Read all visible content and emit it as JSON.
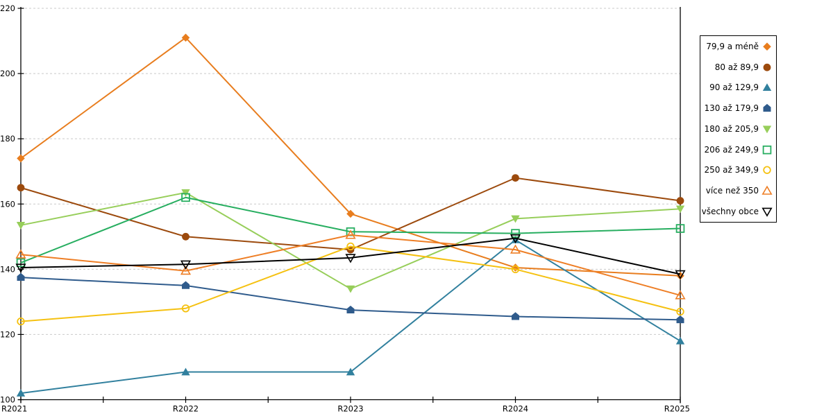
{
  "chart_data": {
    "type": "line",
    "title": "",
    "xlabel": "",
    "ylabel": "",
    "categories": [
      "R2021",
      "R2022",
      "R2023",
      "R2024",
      "R2025"
    ],
    "ylim": [
      100,
      220
    ],
    "ytick_step": 20,
    "yticks": [
      100,
      120,
      140,
      160,
      180,
      200,
      220
    ],
    "ytick_labels": [
      "100",
      "120",
      "140",
      "160",
      "180",
      "200",
      "220"
    ],
    "grid": "horizontal-dashed",
    "legend_position": "right",
    "series": [
      {
        "name": "79,9 a méně",
        "color": "#E87D1E",
        "marker": "diamond",
        "marker_fill": "solid",
        "values": [
          174,
          211,
          157,
          140.5,
          138
        ]
      },
      {
        "name": "80 až 89,9",
        "color": "#9C4A0D",
        "marker": "circle",
        "marker_fill": "solid",
        "values": [
          165,
          150,
          146,
          168,
          161
        ]
      },
      {
        "name": "90 až 129,9",
        "color": "#31809E",
        "marker": "triangle-up",
        "marker_fill": "solid",
        "values": [
          102,
          108.5,
          108.5,
          149,
          118
        ]
      },
      {
        "name": "130 až 179,9",
        "color": "#2F5B8C",
        "marker": "pentagon",
        "marker_fill": "solid",
        "values": [
          137.5,
          135,
          127.5,
          125.5,
          124.5
        ]
      },
      {
        "name": "180 až 205,9",
        "color": "#97CE5A",
        "marker": "triangle-down",
        "marker_fill": "solid",
        "values": [
          153.5,
          163.5,
          134,
          155.5,
          158.5
        ]
      },
      {
        "name": "206 až 249,9",
        "color": "#27AE60",
        "marker": "square",
        "marker_fill": "open",
        "values": [
          142,
          162,
          151.5,
          151,
          152.5
        ]
      },
      {
        "name": "250 až 349,9",
        "color": "#F5C111",
        "marker": "circle",
        "marker_fill": "open",
        "values": [
          124,
          128,
          147,
          140,
          127
        ]
      },
      {
        "name": "více než 350",
        "color": "#EE7E25",
        "marker": "triangle-up",
        "marker_fill": "open",
        "values": [
          144.5,
          139.5,
          150.5,
          146,
          132
        ]
      },
      {
        "name": "všechny obce",
        "color": "#000000",
        "marker": "triangle-down",
        "marker_fill": "open",
        "values": [
          140.5,
          141.5,
          143.5,
          149.5,
          138.5
        ]
      }
    ],
    "colors": {
      "grid": "#C9C9C9",
      "axis": "#000000",
      "background": "#FFFFFF"
    }
  }
}
